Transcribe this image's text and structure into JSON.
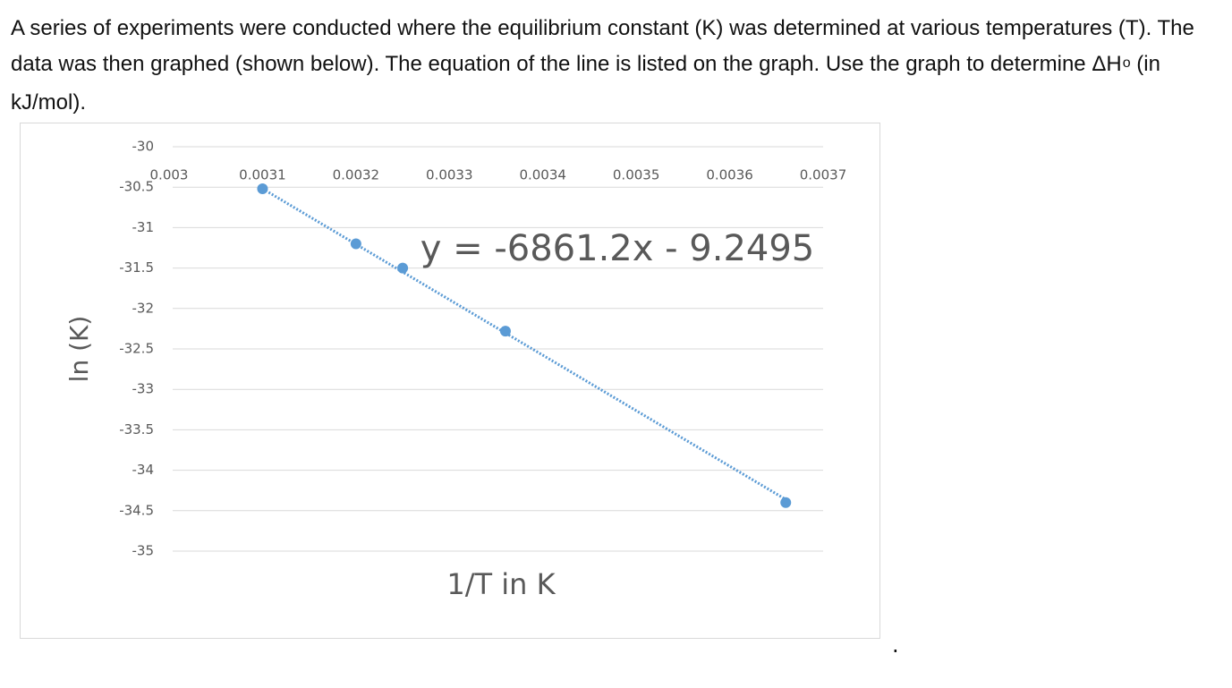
{
  "question": {
    "before": "A series of experiments were conducted where the equilibrium constant (K) was determined at various temperatures (T). The data was then graphed (shown below).  The equation of the line is listed on the graph. Use the graph to determine ΔH",
    "superscript": "o",
    "after": " (in kJ/mol).",
    "trailing_mark": "."
  },
  "chart_data": {
    "type": "scatter",
    "x_label": "1/T in K",
    "y_label": "ln (K)",
    "x": [
      0.0031,
      0.0032,
      0.00325,
      0.00336,
      0.00366
    ],
    "series": [
      {
        "color": "#5b9bd5",
        "values": [
          -30.52,
          -31.2,
          -31.5,
          -32.28,
          -34.4
        ]
      }
    ],
    "trendline": {
      "slope": -6861.2,
      "intercept": -9.2495,
      "label": "y = -6861.2x - 9.2495",
      "color": "#5b9bd5",
      "style": "dotted"
    },
    "xlim": [
      0.003,
      0.0037
    ],
    "xticks": [
      0.003,
      0.0031,
      0.0032,
      0.0033,
      0.0034,
      0.0035,
      0.0036,
      0.0037
    ],
    "ylim": [
      -35,
      -30
    ],
    "yticks": [
      -30,
      -30.5,
      -31,
      -31.5,
      -32,
      -32.5,
      -33,
      -33.5,
      -34,
      -34.5,
      -35
    ],
    "x_axis_position": "top",
    "grid": true
  }
}
